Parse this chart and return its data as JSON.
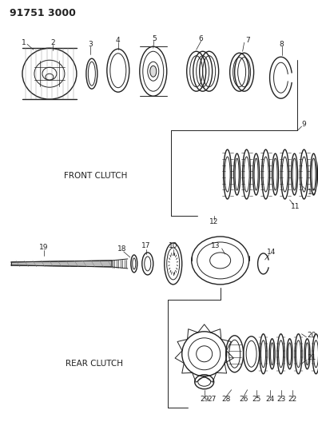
{
  "title": "91751 3000",
  "bg_color": "#ffffff",
  "text_color": "#222222",
  "front_clutch_label": "FRONT CLUTCH",
  "rear_clutch_label": "REAR CLUTCH",
  "fig_width": 3.98,
  "fig_height": 5.33,
  "dpi": 100
}
